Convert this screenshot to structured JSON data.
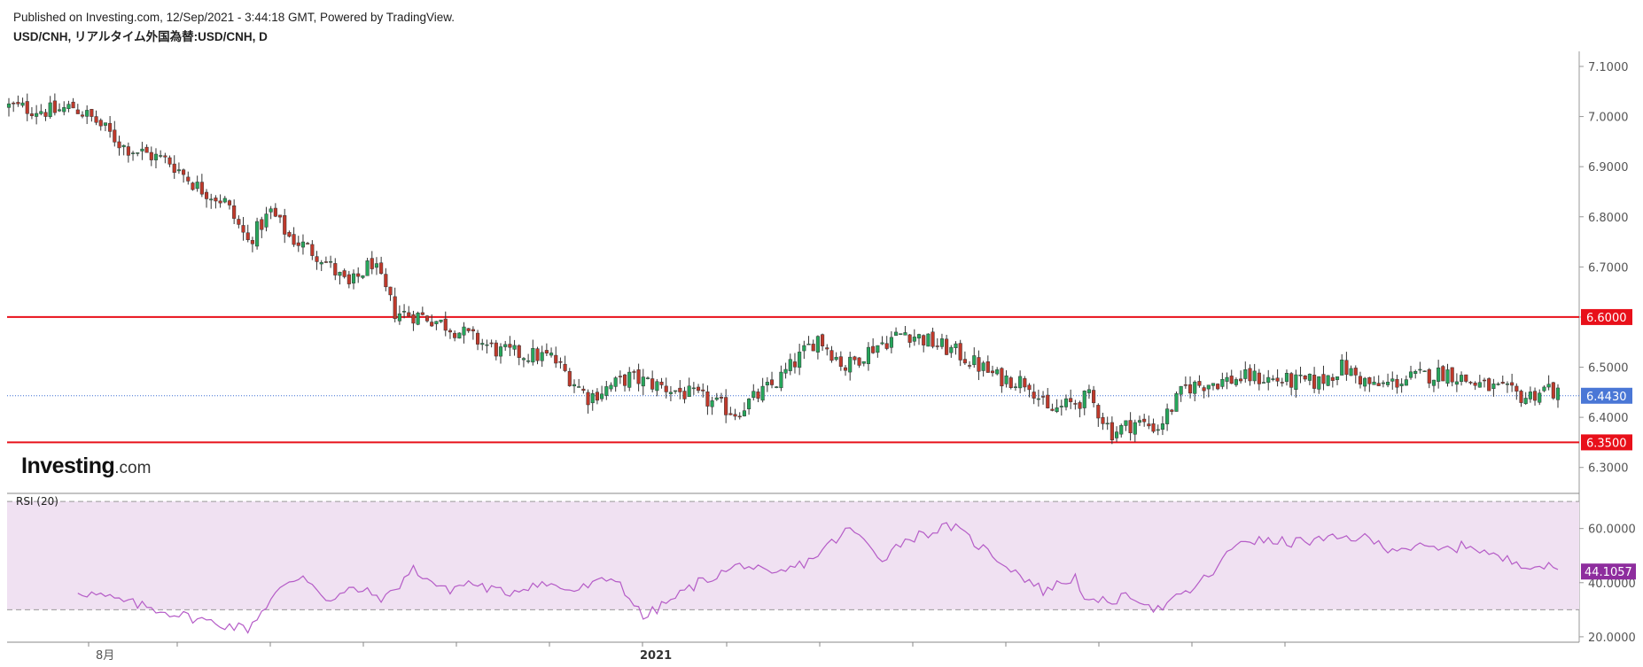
{
  "header": {
    "published": "Published on Investing.com, 12/Sep/2021 - 3:44:18 GMT, Powered by TradingView.",
    "symbol": "USD/CNH, リアルタイム外国為替:USD/CNH, D"
  },
  "logo": {
    "main": "Investing",
    "suffix": ".com"
  },
  "colors": {
    "up": "#26a65b",
    "down": "#c0392b",
    "support_line": "#e8101a",
    "current_line": "#3b6fd4",
    "current_badge": "#4a77d6",
    "rsi_line": "#b55cc7",
    "rsi_badge": "#8e2d9e",
    "rsi_band": "#f0e1f2"
  },
  "chart_data": [
    {
      "type": "candlestick",
      "title": "USD/CNH, リアルタイム外国為替:USD/CNH, D",
      "x_tick_labels": [
        "8月",
        "2021"
      ],
      "ylim": [
        6.25,
        7.13
      ],
      "y_ticks": [
        "7.1000",
        "7.0000",
        "6.9000",
        "6.8000",
        "6.7000",
        "6.6000",
        "6.5000",
        "6.4000",
        "6.3000"
      ],
      "horizontal_lines": [
        {
          "value": 6.6,
          "label": "6.6000",
          "style": "solid"
        },
        {
          "value": 6.35,
          "label": "6.3500",
          "style": "solid"
        }
      ],
      "current_price": {
        "value": 6.443,
        "label": "6.4430"
      },
      "anchors": [
        [
          0,
          7.02
        ],
        [
          10,
          7.01
        ],
        [
          14,
          7.02
        ],
        [
          19,
          6.99
        ],
        [
          25,
          6.94
        ],
        [
          35,
          6.91
        ],
        [
          41,
          6.86
        ],
        [
          47,
          6.83
        ],
        [
          52,
          6.75
        ],
        [
          57,
          6.81
        ],
        [
          61,
          6.76
        ],
        [
          68,
          6.72
        ],
        [
          74,
          6.66
        ],
        [
          79,
          6.71
        ],
        [
          84,
          6.61
        ],
        [
          91,
          6.6
        ],
        [
          96,
          6.58
        ],
        [
          107,
          6.53
        ],
        [
          118,
          6.52
        ],
        [
          126,
          6.44
        ],
        [
          135,
          6.48
        ],
        [
          150,
          6.44
        ],
        [
          158,
          6.41
        ],
        [
          167,
          6.47
        ],
        [
          176,
          6.56
        ],
        [
          182,
          6.5
        ],
        [
          188,
          6.54
        ],
        [
          195,
          6.57
        ],
        [
          206,
          6.53
        ],
        [
          215,
          6.48
        ],
        [
          222,
          6.47
        ],
        [
          226,
          6.41
        ],
        [
          235,
          6.44
        ],
        [
          240,
          6.37
        ],
        [
          245,
          6.39
        ],
        [
          250,
          6.38
        ],
        [
          256,
          6.46
        ],
        [
          262,
          6.47
        ],
        [
          270,
          6.48
        ],
        [
          280,
          6.47
        ],
        [
          285,
          6.47
        ],
        [
          290,
          6.5
        ],
        [
          297,
          6.46
        ],
        [
          306,
          6.48
        ],
        [
          313,
          6.49
        ],
        [
          318,
          6.47
        ],
        [
          330,
          6.44
        ],
        [
          335,
          6.46
        ],
        [
          337,
          6.443
        ]
      ],
      "candle_count": 338
    },
    {
      "type": "line",
      "title": "RSI (20)",
      "ylim": [
        18,
        72
      ],
      "y_ticks": [
        "60.0000",
        "40.0000",
        "20.0000"
      ],
      "band": [
        30,
        70
      ],
      "current_value": {
        "value": 44.1057,
        "label": "44.1057"
      },
      "anchors": [
        [
          15,
          37
        ],
        [
          25,
          33
        ],
        [
          30,
          31
        ],
        [
          40,
          27
        ],
        [
          45,
          25
        ],
        [
          52,
          23
        ],
        [
          58,
          36
        ],
        [
          64,
          43
        ],
        [
          70,
          33
        ],
        [
          75,
          38
        ],
        [
          82,
          34
        ],
        [
          88,
          45
        ],
        [
          95,
          37
        ],
        [
          100,
          40
        ],
        [
          108,
          36
        ],
        [
          115,
          40
        ],
        [
          123,
          37
        ],
        [
          132,
          42
        ],
        [
          138,
          27
        ],
        [
          150,
          40
        ],
        [
          160,
          47
        ],
        [
          166,
          42
        ],
        [
          174,
          48
        ],
        [
          183,
          60
        ],
        [
          190,
          49
        ],
        [
          195,
          56
        ],
        [
          205,
          61
        ],
        [
          215,
          49
        ],
        [
          225,
          37
        ],
        [
          232,
          42
        ],
        [
          235,
          32
        ],
        [
          245,
          35
        ],
        [
          250,
          30
        ],
        [
          257,
          37
        ],
        [
          262,
          44
        ],
        [
          268,
          56
        ],
        [
          275,
          55
        ],
        [
          280,
          55
        ],
        [
          288,
          56
        ],
        [
          294,
          57
        ],
        [
          300,
          53
        ],
        [
          306,
          53
        ],
        [
          312,
          52
        ],
        [
          318,
          54
        ],
        [
          324,
          49
        ],
        [
          330,
          47
        ],
        [
          334,
          46
        ],
        [
          338,
          44.1
        ]
      ]
    }
  ]
}
